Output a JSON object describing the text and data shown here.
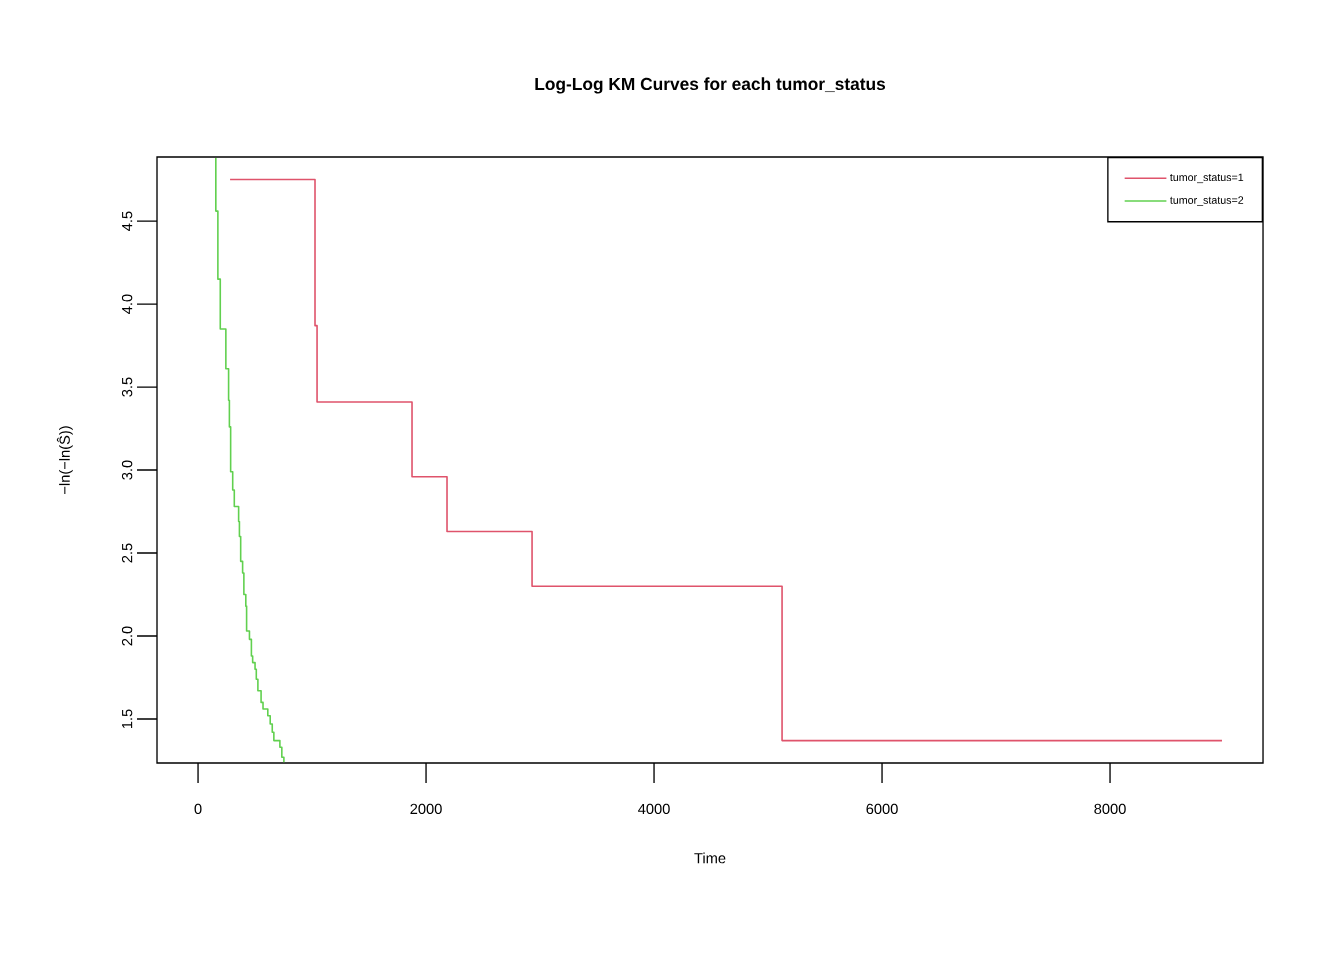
{
  "chart_data": {
    "type": "step",
    "title": "Log-Log KM Curves for each tumor_status",
    "xlabel": "Time",
    "ylabel": "−ln(−ln(Ŝ))",
    "xlim": [
      -360,
      9342
    ],
    "ylim": [
      1.235,
      4.886
    ],
    "xticks": [
      0,
      2000,
      4000,
      6000,
      8000
    ],
    "yticks": [
      {
        "value": 1.5,
        "label": "1.5"
      },
      {
        "value": 2,
        "label": "2.0"
      },
      {
        "value": 2.5,
        "label": "2.5"
      },
      {
        "value": 3,
        "label": "3.0"
      },
      {
        "value": 3.5,
        "label": "3.5"
      },
      {
        "value": 4,
        "label": "4.0"
      },
      {
        "value": 4.5,
        "label": "4.5"
      }
    ],
    "grid": false,
    "legend": "top right",
    "marker": "none",
    "line_style": "solid",
    "series": [
      {
        "name": "tumor_status=1",
        "color": "#df536b",
        "x": [
          281,
          1026,
          1044,
          1877,
          2184,
          2930,
          5123,
          8982
        ],
        "values": [
          4.75,
          3.87,
          3.41,
          2.96,
          2.63,
          2.3,
          1.37,
          1.37
        ]
      },
      {
        "name": "tumor_status=2",
        "color": "#61d04f",
        "x": [
          156,
          156,
          174,
          195,
          244,
          268,
          275,
          286,
          304,
          318,
          356,
          363,
          374,
          391,
          402,
          419,
          426,
          451,
          468,
          479,
          500,
          511,
          525,
          553,
          570,
          612,
          633,
          651,
          665,
          718,
          735,
          753
        ],
        "values": [
          4.88,
          4.56,
          4.15,
          3.85,
          3.61,
          3.42,
          3.26,
          2.99,
          2.88,
          2.78,
          2.69,
          2.6,
          2.45,
          2.38,
          2.25,
          2.18,
          2.03,
          1.98,
          1.88,
          1.84,
          1.8,
          1.74,
          1.67,
          1.6,
          1.56,
          1.52,
          1.47,
          1.42,
          1.37,
          1.33,
          1.27,
          1.24
        ]
      }
    ]
  }
}
